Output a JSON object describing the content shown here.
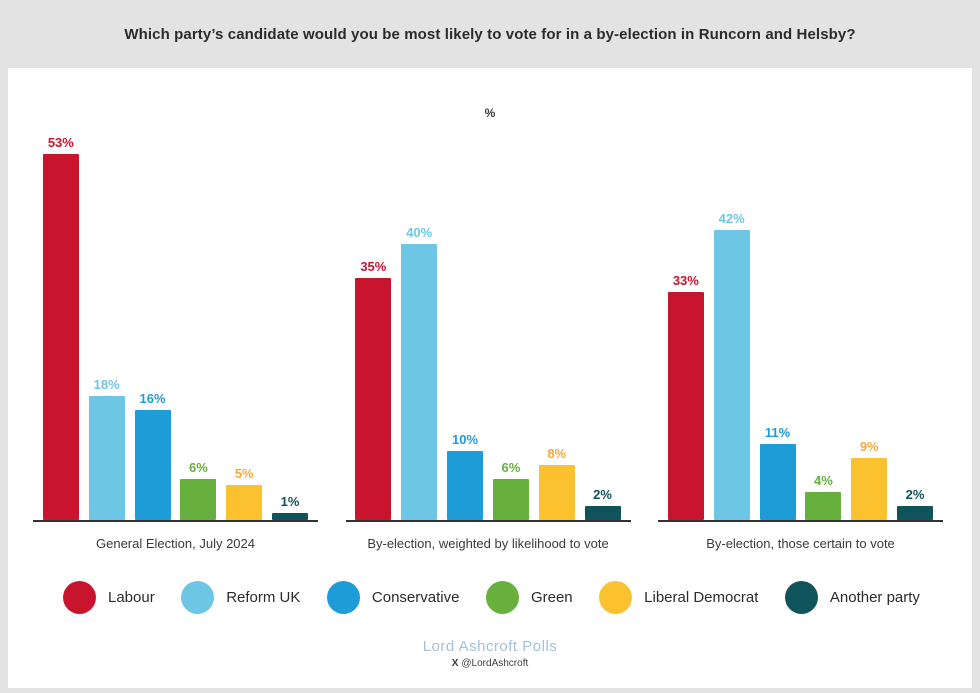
{
  "header": {
    "title": "Which party’s candidate would you be most likely to vote for in a by-election in Runcorn and Helsby?"
  },
  "chart_data": {
    "type": "bar",
    "title": "Which party’s candidate would you be most likely to vote for in a by-election in Runcorn and Helsby?",
    "axis_label": "%",
    "value_suffix": "%",
    "ylim": [
      0,
      55
    ],
    "grid": false,
    "legend_position": "bottom",
    "parties": [
      {
        "name": "Labour",
        "color": "#c9142e"
      },
      {
        "name": "Reform UK",
        "color": "#6ec6e5"
      },
      {
        "name": "Conservative",
        "color": "#1e9cd8"
      },
      {
        "name": "Green",
        "color": "#68b03d"
      },
      {
        "name": "Liberal Democrat",
        "color": "#fbc12e",
        "label_color": "#f3a93c"
      },
      {
        "name": "Another party",
        "color": "#0f545a"
      }
    ],
    "categories": [
      "General Election, July  2024",
      "By-election, weighted by likelihood to vote",
      "By-election, those certain to vote"
    ],
    "groups": [
      {
        "label": "General Election, July  2024",
        "values": [
          53,
          18,
          16,
          6,
          5,
          1
        ]
      },
      {
        "label": "By-election, weighted by likelihood to vote",
        "values": [
          35,
          40,
          10,
          6,
          8,
          2
        ]
      },
      {
        "label": "By-election, those certain to vote",
        "values": [
          33,
          42,
          11,
          4,
          9,
          2
        ]
      }
    ]
  },
  "footer": {
    "brand": "Lord Ashcroft Polls",
    "x_glyph": "X",
    "handle": "@LordAshcroft"
  }
}
